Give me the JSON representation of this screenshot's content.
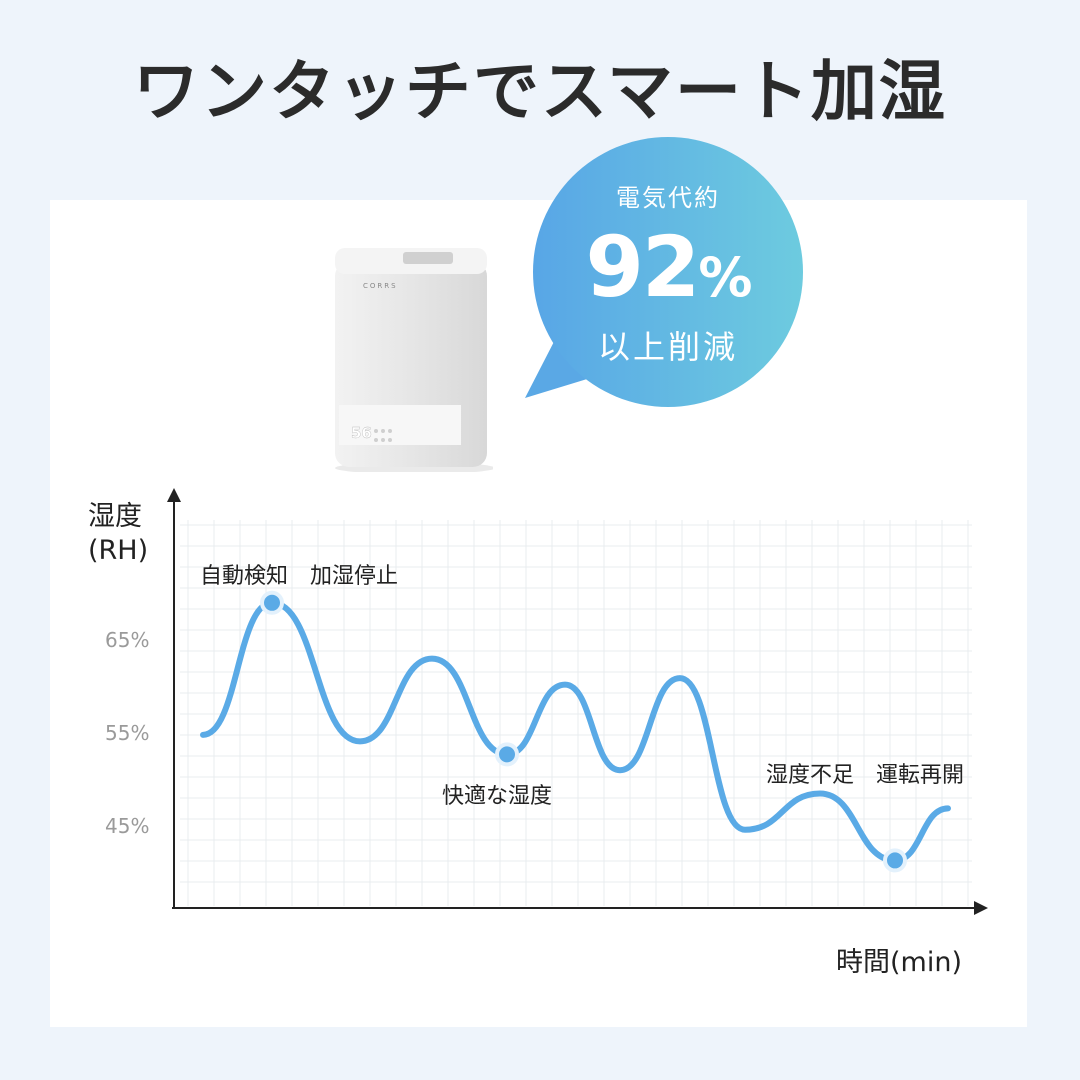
{
  "title": "ワンタッチでスマート加湿",
  "bubble": {
    "line1": "電気代約",
    "number": "92",
    "unit": "%",
    "line3": "以上削減",
    "colors": [
      "#58a6e6",
      "#6dcbdf"
    ]
  },
  "device": {
    "brand": "CORRS",
    "display": "56"
  },
  "chart_data": {
    "type": "line",
    "ylabel": "湿度(RH)",
    "xlabel": "時間(min)",
    "y_ticks": [
      "65%",
      "55%",
      "45%"
    ],
    "ylim": [
      36,
      76
    ],
    "grid": true,
    "line_color": "#5aaae6",
    "values": [
      54.8,
      69.0,
      54.1,
      63.0,
      52.7,
      60.2,
      51.0,
      60.9,
      44.6,
      48.5,
      41.3,
      46.9
    ],
    "annotations": [
      {
        "text": "自動検知　加湿停止",
        "point_index": 1
      },
      {
        "text": "快適な湿度",
        "point_index": 4
      },
      {
        "text": "湿度不足　運転再開",
        "point_index": 10
      }
    ]
  }
}
